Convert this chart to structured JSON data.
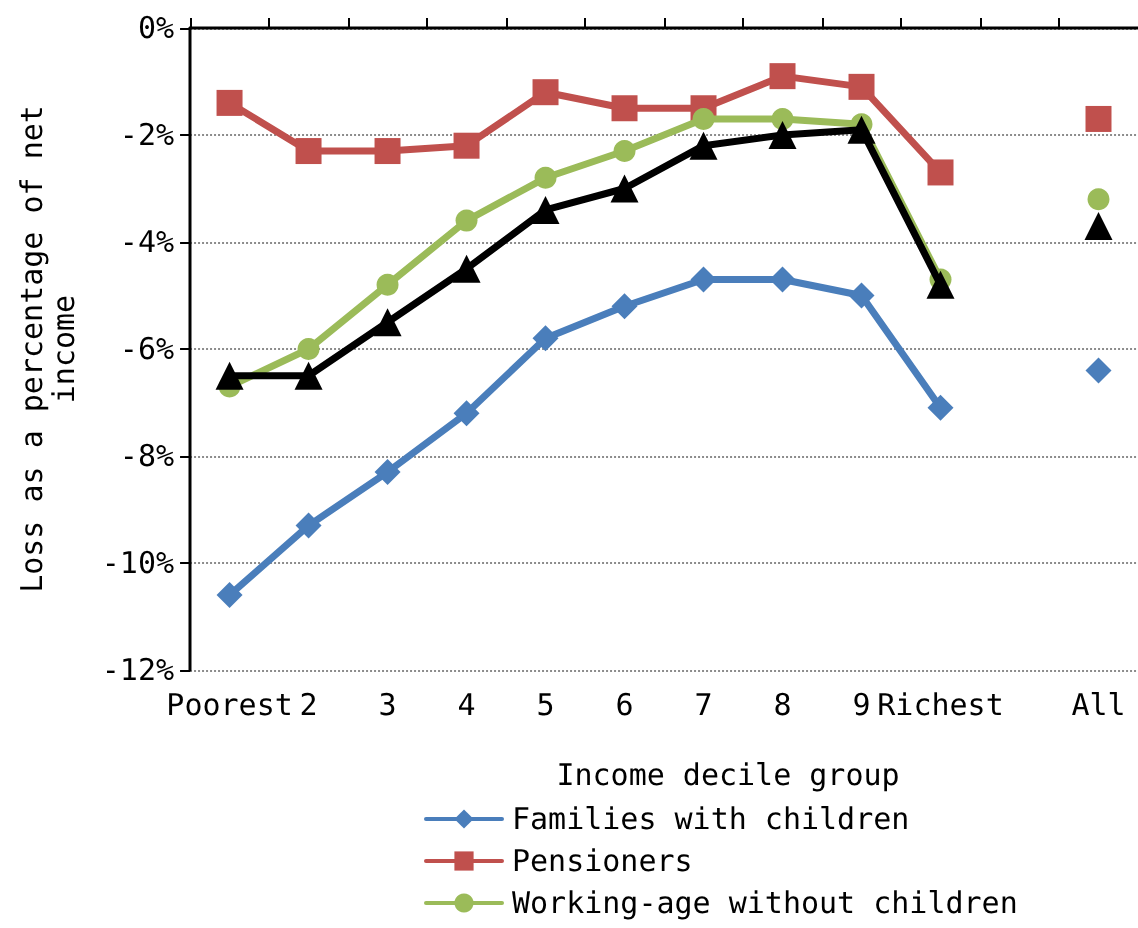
{
  "chart_data": {
    "type": "line",
    "xlabel": "Income decile group",
    "ylabel": "Loss as a percentage of net income",
    "categories": [
      "Poorest",
      "2",
      "3",
      "4",
      "5",
      "6",
      "7",
      "8",
      "9",
      "Richest",
      null,
      "All"
    ],
    "series": [
      {
        "name": "Families with children",
        "color": "#4a7ebb",
        "marker": "diamond",
        "values": [
          -10.6,
          -9.3,
          -8.3,
          -7.2,
          -5.8,
          -5.2,
          -4.7,
          -4.7,
          -5.0,
          -7.1,
          null,
          -6.4
        ]
      },
      {
        "name": "Pensioners",
        "color": "#c0504d",
        "marker": "square",
        "values": [
          -1.4,
          -2.3,
          -2.3,
          -2.2,
          -1.2,
          -1.5,
          -1.5,
          -0.9,
          -1.1,
          -2.7,
          null,
          -1.7
        ]
      },
      {
        "name": "Working-age without children",
        "color": "#9bbb59",
        "marker": "circle",
        "values": [
          -6.7,
          -6.0,
          -4.8,
          -3.6,
          -2.8,
          -2.3,
          -1.7,
          -1.7,
          -1.8,
          -4.7,
          null,
          -3.2
        ]
      },
      {
        "color": "#000000",
        "marker": "triangle",
        "values": [
          -6.5,
          -6.5,
          -5.5,
          -4.5,
          -3.4,
          -3.0,
          -2.2,
          -2.0,
          -1.9,
          -4.8,
          null,
          -3.7
        ]
      }
    ],
    "ylim": [
      -12,
      0
    ],
    "yticks": [
      {
        "value": -12,
        "label": "-12%"
      },
      {
        "value": -10,
        "label": "-10%"
      },
      {
        "value": -8,
        "label": "-8%"
      },
      {
        "value": -6,
        "label": "-6%"
      },
      {
        "value": -4,
        "label": "-4%"
      },
      {
        "value": -2,
        "label": "-2%"
      },
      {
        "value": 0,
        "label": "0%"
      }
    ],
    "grid": "y",
    "legend": "bottom",
    "line_style": "solid"
  }
}
